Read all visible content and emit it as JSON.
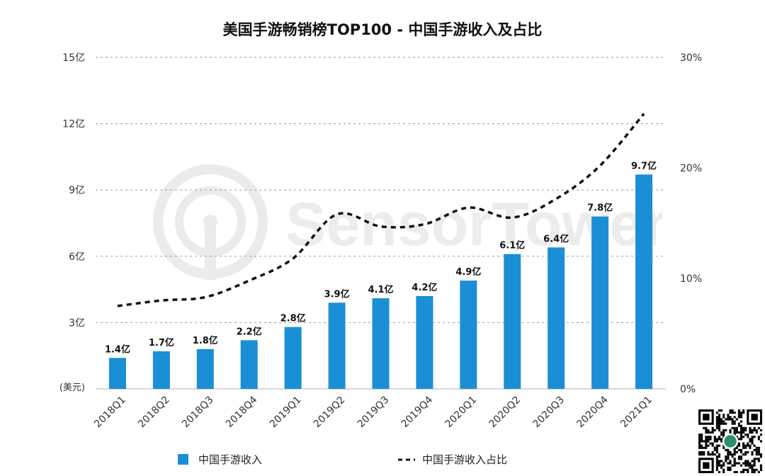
{
  "title": "美国手游畅销榜TOP100 - 中国手游收入及占比",
  "watermark": "SensorTower",
  "chart_data": {
    "type": "bar",
    "title": "美国手游畅销榜TOP100 - 中国手游收入及占比",
    "categories": [
      "2018Q1",
      "2018Q2",
      "2018Q3",
      "2018Q4",
      "2019Q1",
      "2019Q2",
      "2019Q3",
      "2019Q4",
      "2020Q1",
      "2020Q2",
      "2020Q3",
      "2020Q4",
      "2021Q1"
    ],
    "series": [
      {
        "name": "中国手游收入",
        "type": "bar",
        "axis": "left",
        "color": "#1a8fd6",
        "values": [
          1.4,
          1.7,
          1.8,
          2.2,
          2.8,
          3.9,
          4.1,
          4.2,
          4.9,
          6.1,
          6.4,
          7.8,
          9.7
        ],
        "labels": [
          "1.4亿",
          "1.7亿",
          "1.8亿",
          "2.2亿",
          "2.8亿",
          "3.9亿",
          "4.1亿",
          "4.2亿",
          "4.9亿",
          "6.1亿",
          "6.4亿",
          "7.8亿",
          "9.7亿"
        ]
      },
      {
        "name": "中国手游收入占比",
        "type": "line",
        "style": "dashed",
        "axis": "right",
        "color": "#111111",
        "values": [
          7.5,
          8.0,
          8.3,
          9.8,
          11.8,
          15.8,
          14.7,
          14.9,
          16.4,
          15.5,
          17.2,
          20.2,
          24.9
        ]
      }
    ],
    "y_left": {
      "unit": "(美元)",
      "ylim": [
        0,
        15
      ],
      "ticks": [
        3,
        6,
        9,
        12,
        15
      ],
      "tick_labels": [
        "3亿",
        "6亿",
        "9亿",
        "12亿",
        "15亿"
      ]
    },
    "y_right": {
      "ylim": [
        0,
        30
      ],
      "ticks": [
        0,
        10,
        20,
        30
      ],
      "tick_labels": [
        "0%",
        "10%",
        "20%",
        "30%"
      ]
    },
    "grid": true,
    "legend": "bottom"
  },
  "colors": {
    "bar": "#1a8fd6",
    "line": "#111111",
    "grid": "#9a9a9a"
  },
  "icons": {
    "qr": "qr-code-icon"
  }
}
